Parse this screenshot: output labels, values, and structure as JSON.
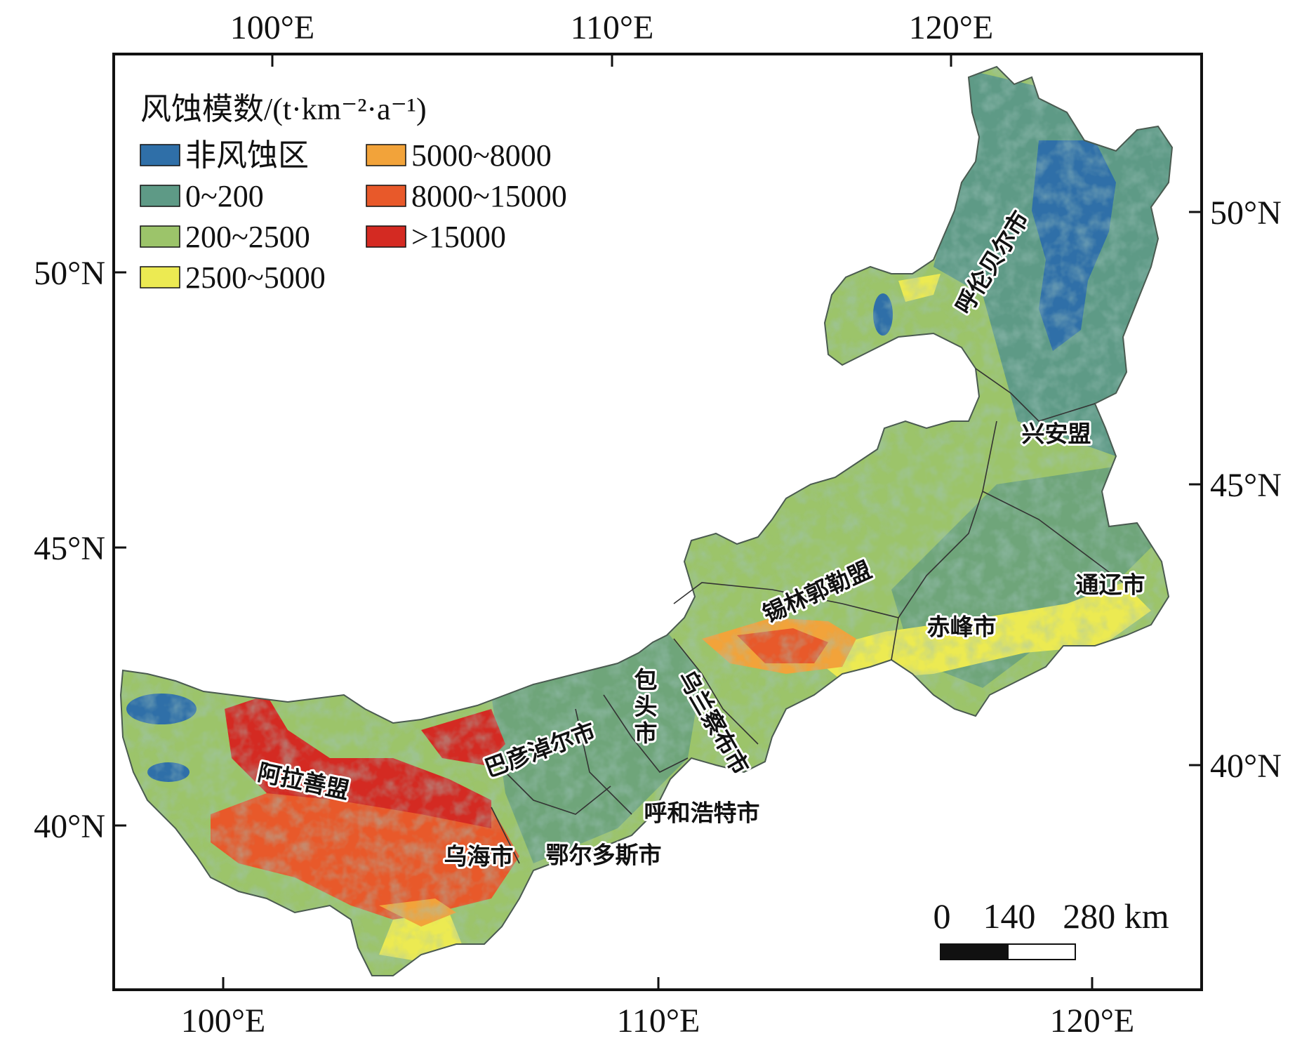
{
  "map": {
    "axes": {
      "top_ticks": [
        "100°E",
        "110°E",
        "120°E"
      ],
      "bottom_ticks": [
        "100°E",
        "110°E",
        "120°E"
      ],
      "left_ticks": [
        "50°N",
        "45°N",
        "40°N"
      ],
      "right_ticks": [
        "50°N",
        "45°N",
        "40°N"
      ]
    },
    "legend": {
      "title": "风蚀模数/(t·km⁻²·a⁻¹)",
      "items": [
        {
          "label": "非风蚀区",
          "color": "#2f6fa8"
        },
        {
          "label": "0~200",
          "color": "#5e9a86"
        },
        {
          "label": "200~2500",
          "color": "#9cc46a"
        },
        {
          "label": "2500~5000",
          "color": "#ecea52"
        },
        {
          "label": "5000~8000",
          "color": "#f2a33a"
        },
        {
          "label": "8000~15000",
          "color": "#e8592a"
        },
        {
          "label": ">15000",
          "color": "#d42a22"
        }
      ]
    },
    "regions": [
      {
        "name": "呼伦贝尔市",
        "rotate": -58
      },
      {
        "name": "兴安盟",
        "rotate": 0
      },
      {
        "name": "通辽市",
        "rotate": 0
      },
      {
        "name": "赤峰市",
        "rotate": 0
      },
      {
        "name": "锡林郭勒盟",
        "rotate": -24
      },
      {
        "name": "乌兰察布市",
        "rotate": 60
      },
      {
        "name": "包头市",
        "rotate": 0
      },
      {
        "name": "呼和浩特市",
        "rotate": 0
      },
      {
        "name": "巴彦淖尔市",
        "rotate": -20
      },
      {
        "name": "阿拉善盟",
        "rotate": 12
      },
      {
        "name": "乌海市",
        "rotate": 0
      },
      {
        "name": "鄂尔多斯市",
        "rotate": 0
      }
    ],
    "scale_bar": {
      "labels": [
        "0",
        "140",
        "280 km"
      ]
    }
  }
}
